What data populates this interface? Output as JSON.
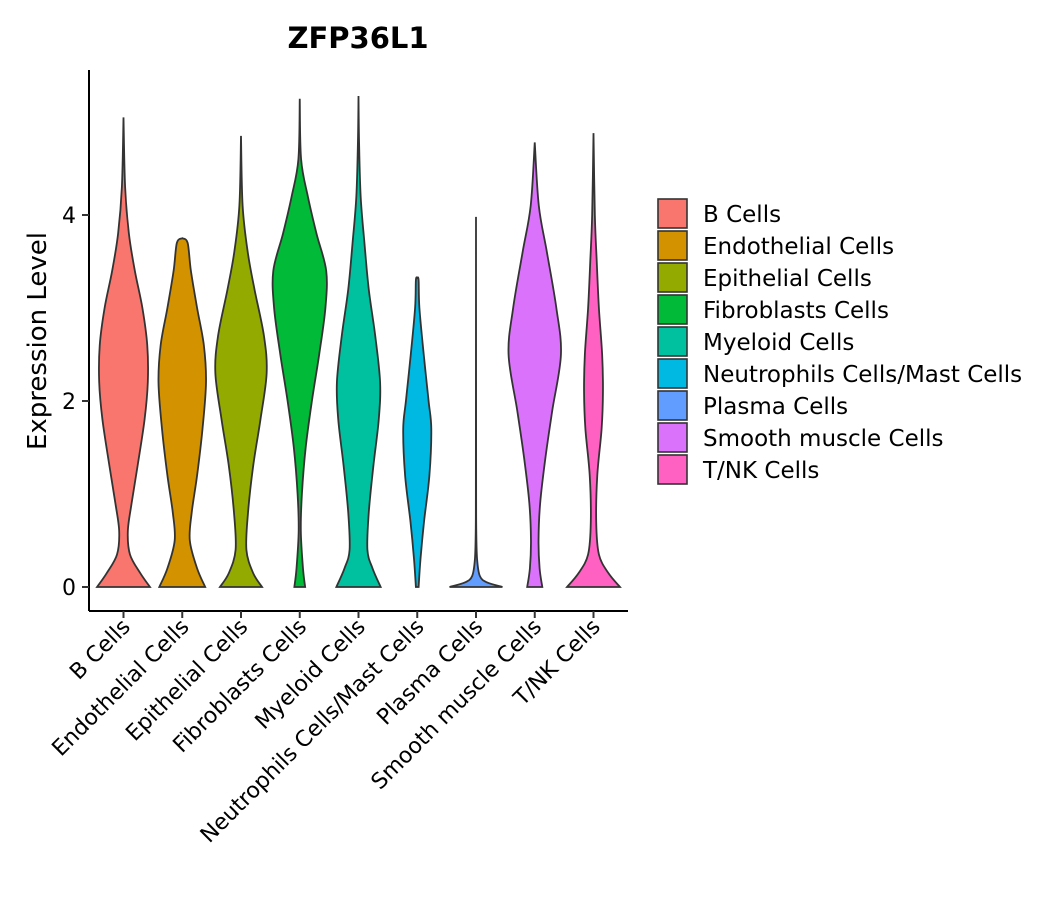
{
  "chart_data": {
    "type": "violin",
    "title": "ZFP36L1",
    "xlabel": "",
    "ylabel": "Expression Level",
    "ylim": [
      -0.3,
      5.5
    ],
    "yticks": [
      0,
      2,
      4
    ],
    "legend_position": "right",
    "categories": [
      "B Cells",
      "Endothelial Cells",
      "Epithelial Cells",
      "Fibroblasts Cells",
      "Myeloid Cells",
      "Neutrophils Cells/Mast Cells",
      "Plasma Cells",
      "Smooth muscle Cells",
      "T/NK Cells"
    ],
    "colors": [
      "#F8766D",
      "#D39200",
      "#93AA00",
      "#00BA38",
      "#00C19F",
      "#00B9E3",
      "#619CFF",
      "#DB72FB",
      "#FF61C3"
    ],
    "max_expression": [
      5.05,
      3.75,
      4.85,
      5.25,
      5.28,
      3.3,
      3.98,
      4.78,
      4.88
    ],
    "density_profiles": [
      [
        [
          0,
          0.98
        ],
        [
          0.15,
          0.62
        ],
        [
          0.35,
          0.24
        ],
        [
          0.6,
          0.16
        ],
        [
          0.9,
          0.3
        ],
        [
          1.3,
          0.52
        ],
        [
          1.8,
          0.78
        ],
        [
          2.2,
          0.9
        ],
        [
          2.6,
          0.88
        ],
        [
          3.0,
          0.7
        ],
        [
          3.4,
          0.42
        ],
        [
          3.8,
          0.2
        ],
        [
          4.3,
          0.06
        ],
        [
          5.05,
          0.0
        ]
      ],
      [
        [
          0,
          0.85
        ],
        [
          0.2,
          0.55
        ],
        [
          0.5,
          0.28
        ],
        [
          0.8,
          0.35
        ],
        [
          1.2,
          0.55
        ],
        [
          1.7,
          0.75
        ],
        [
          2.2,
          0.88
        ],
        [
          2.6,
          0.8
        ],
        [
          3.0,
          0.55
        ],
        [
          3.4,
          0.32
        ],
        [
          3.7,
          0.2
        ],
        [
          3.75,
          0.0
        ]
      ],
      [
        [
          0,
          0.78
        ],
        [
          0.15,
          0.45
        ],
        [
          0.4,
          0.2
        ],
        [
          0.8,
          0.26
        ],
        [
          1.3,
          0.45
        ],
        [
          1.8,
          0.72
        ],
        [
          2.3,
          0.95
        ],
        [
          2.7,
          0.85
        ],
        [
          3.2,
          0.5
        ],
        [
          3.6,
          0.25
        ],
        [
          4.1,
          0.06
        ],
        [
          4.85,
          0.0
        ]
      ],
      [
        [
          0,
          0.2
        ],
        [
          0.2,
          0.12
        ],
        [
          0.6,
          0.04
        ],
        [
          1.0,
          0.08
        ],
        [
          1.5,
          0.22
        ],
        [
          2.0,
          0.45
        ],
        [
          2.5,
          0.72
        ],
        [
          3.0,
          0.95
        ],
        [
          3.4,
          0.98
        ],
        [
          3.8,
          0.62
        ],
        [
          4.2,
          0.3
        ],
        [
          4.6,
          0.05
        ],
        [
          5.25,
          0.0
        ]
      ],
      [
        [
          0,
          0.82
        ],
        [
          0.2,
          0.52
        ],
        [
          0.4,
          0.33
        ],
        [
          0.8,
          0.38
        ],
        [
          1.3,
          0.55
        ],
        [
          1.8,
          0.75
        ],
        [
          2.2,
          0.8
        ],
        [
          2.7,
          0.62
        ],
        [
          3.2,
          0.38
        ],
        [
          3.7,
          0.22
        ],
        [
          4.2,
          0.08
        ],
        [
          4.8,
          0.02
        ],
        [
          5.28,
          0.0
        ]
      ],
      [
        [
          0,
          0.05
        ],
        [
          0.3,
          0.12
        ],
        [
          0.7,
          0.25
        ],
        [
          1.2,
          0.45
        ],
        [
          1.7,
          0.52
        ],
        [
          2.0,
          0.42
        ],
        [
          2.5,
          0.24
        ],
        [
          3.0,
          0.08
        ],
        [
          3.3,
          0.05
        ],
        [
          3.32,
          0.0
        ]
      ],
      [
        [
          0,
          0.98
        ],
        [
          0.05,
          0.4
        ],
        [
          0.12,
          0.14
        ],
        [
          0.3,
          0.04
        ],
        [
          0.6,
          0.01
        ],
        [
          1.0,
          0.005
        ],
        [
          2.0,
          0.003
        ],
        [
          3.98,
          0.0
        ]
      ],
      [
        [
          0,
          0.28
        ],
        [
          0.2,
          0.18
        ],
        [
          0.5,
          0.14
        ],
        [
          0.9,
          0.2
        ],
        [
          1.4,
          0.4
        ],
        [
          1.9,
          0.65
        ],
        [
          2.5,
          0.97
        ],
        [
          3.0,
          0.8
        ],
        [
          3.6,
          0.45
        ],
        [
          4.1,
          0.15
        ],
        [
          4.78,
          0.0
        ]
      ],
      [
        [
          0,
          0.98
        ],
        [
          0.15,
          0.55
        ],
        [
          0.35,
          0.2
        ],
        [
          0.7,
          0.1
        ],
        [
          1.2,
          0.14
        ],
        [
          1.7,
          0.3
        ],
        [
          2.1,
          0.35
        ],
        [
          2.5,
          0.32
        ],
        [
          3.0,
          0.2
        ],
        [
          3.5,
          0.12
        ],
        [
          4.0,
          0.05
        ],
        [
          4.88,
          0.0
        ]
      ]
    ]
  }
}
